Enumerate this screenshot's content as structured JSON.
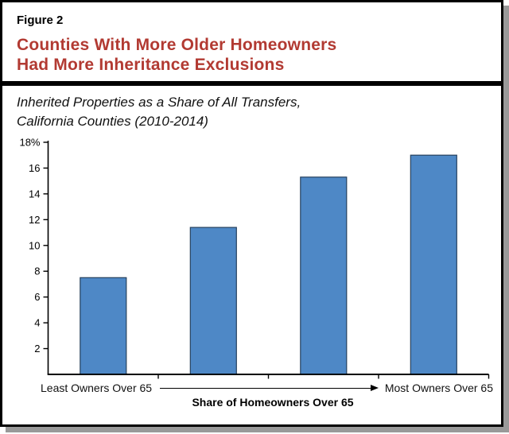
{
  "figure": {
    "label": "Figure 2",
    "title_line1": "Counties With More Older Homeowners",
    "title_line2": "Had More Inheritance Exclusions",
    "subtitle_line1": "Inherited Properties as a Share of All Transfers,",
    "subtitle_line2": "California Counties (2010-2014)"
  },
  "colors": {
    "title_red": "#b23a32",
    "bar_fill": "#4e88c6",
    "bar_stroke": "#26415e",
    "axis_black": "#000000",
    "shadow_gray": "#999999"
  },
  "chart_data": {
    "type": "bar",
    "categories": [
      "",
      "",
      "",
      ""
    ],
    "values": [
      7.5,
      11.4,
      15.3,
      17.0
    ],
    "title": "Inherited Properties as a Share of All Transfers, California Counties (2010-2014)",
    "xlabel": "Share of Homeowners Over 65",
    "ylabel": "",
    "ylim": [
      0,
      18
    ],
    "grid": false,
    "legend": false,
    "yticks": [
      {
        "value": 2,
        "label": "2"
      },
      {
        "value": 4,
        "label": "4"
      },
      {
        "value": 6,
        "label": "6"
      },
      {
        "value": 8,
        "label": "8"
      },
      {
        "value": 10,
        "label": "10"
      },
      {
        "value": 12,
        "label": "12"
      },
      {
        "value": 14,
        "label": "14"
      },
      {
        "value": 16,
        "label": "16"
      },
      {
        "value": 18,
        "label": "18%"
      }
    ],
    "x_axis": {
      "left_label": "Least Owners Over 65",
      "right_label": "Most Owners Over 65",
      "title": "Share of Homeowners Over 65",
      "arrow_direction": "right"
    }
  }
}
